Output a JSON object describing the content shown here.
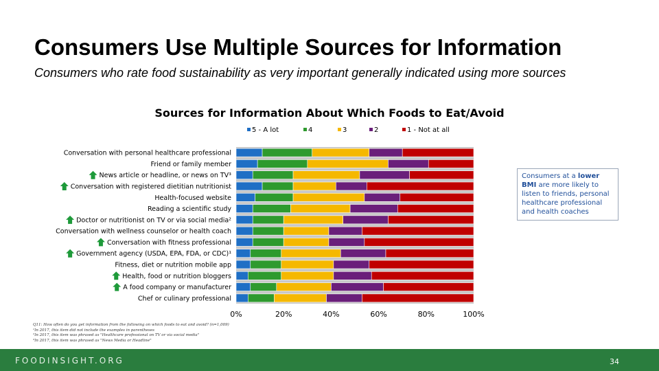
{
  "slide": {
    "title": "Consumers Use Multiple Sources for Information",
    "subtitle": "Consumers who rate food sustainability as very important generally indicated using more sources",
    "callout": {
      "before": "Consumers at a ",
      "emphasis": "lower BMI",
      "after": " are more likely to listen to friends, personal healthcare professional and health coaches"
    },
    "footnotes": [
      "Q11: How often do you get information from the following on which foods to eat and avoid? (n=1,009)",
      "¹In 2017, this item did not include the examples in parentheses",
      "²In 2017, this item was phrased as \"Healthcare professional on TV or via social media\"",
      "³In 2017, this item was phrased as \"News Media or Headline\""
    ],
    "footer_brand": "FOODINSIGHT.ORG",
    "page_number": "34"
  },
  "colors": {
    "5 - A lot": "#1f6fc5",
    "4": "#2e9a2e",
    "3": "#f5b800",
    "2": "#6a1f7a",
    "1 - Not at all": "#c00000",
    "up_arrow": "#1e9a3a"
  },
  "chart_data": {
    "type": "bar",
    "orientation": "horizontal",
    "stacked": true,
    "title": "Sources for Information About Which Foods to Eat/Avoid",
    "xlabel": "",
    "ylabel": "",
    "xlim": [
      0,
      100
    ],
    "x_ticks": [
      "0%",
      "20%",
      "40%",
      "60%",
      "80%",
      "100%"
    ],
    "legend_position": "top",
    "categories": [
      {
        "label": "Conversation with personal healthcare professional",
        "up_arrow": false
      },
      {
        "label": "Friend or family member",
        "up_arrow": false
      },
      {
        "label": "News article or headline, or news on TV³",
        "up_arrow": true
      },
      {
        "label": "Conversation with registered dietitian nutritionist",
        "up_arrow": true
      },
      {
        "label": "Health-focused website",
        "up_arrow": false
      },
      {
        "label": "Reading a scientific study",
        "up_arrow": false
      },
      {
        "label": "Doctor or nutritionist on TV or via social media²",
        "up_arrow": true
      },
      {
        "label": "Conversation with wellness counselor or health coach",
        "up_arrow": false
      },
      {
        "label": "Conversation with fitness professional",
        "up_arrow": true
      },
      {
        "label": "Government agency (USDA, EPA, FDA, or CDC)¹",
        "up_arrow": true
      },
      {
        "label": "Fitness, diet or nutrition mobile app",
        "up_arrow": false
      },
      {
        "label": "Health, food or nutrition bloggers",
        "up_arrow": true
      },
      {
        "label": "A food company or manufacturer",
        "up_arrow": true
      },
      {
        "label": "Chef or culinary professional",
        "up_arrow": false
      }
    ],
    "series": [
      {
        "name": "5 - A lot",
        "values": [
          11,
          9,
          7,
          11,
          8,
          7,
          7,
          7,
          7,
          6,
          6,
          5,
          6,
          5
        ]
      },
      {
        "name": "4",
        "values": [
          21,
          21,
          17,
          13,
          16,
          16,
          13,
          13,
          13,
          13,
          13,
          14,
          11,
          11
        ]
      },
      {
        "name": "3",
        "values": [
          24,
          34,
          28,
          18,
          30,
          25,
          25,
          19,
          19,
          25,
          22,
          22,
          23,
          22
        ]
      },
      {
        "name": "2",
        "values": [
          14,
          17,
          21,
          13,
          15,
          20,
          19,
          14,
          15,
          19,
          15,
          16,
          22,
          15
        ]
      },
      {
        "name": "1 - Not at all",
        "values": [
          30,
          19,
          27,
          45,
          31,
          32,
          36,
          47,
          46,
          37,
          44,
          43,
          38,
          47
        ]
      }
    ]
  }
}
